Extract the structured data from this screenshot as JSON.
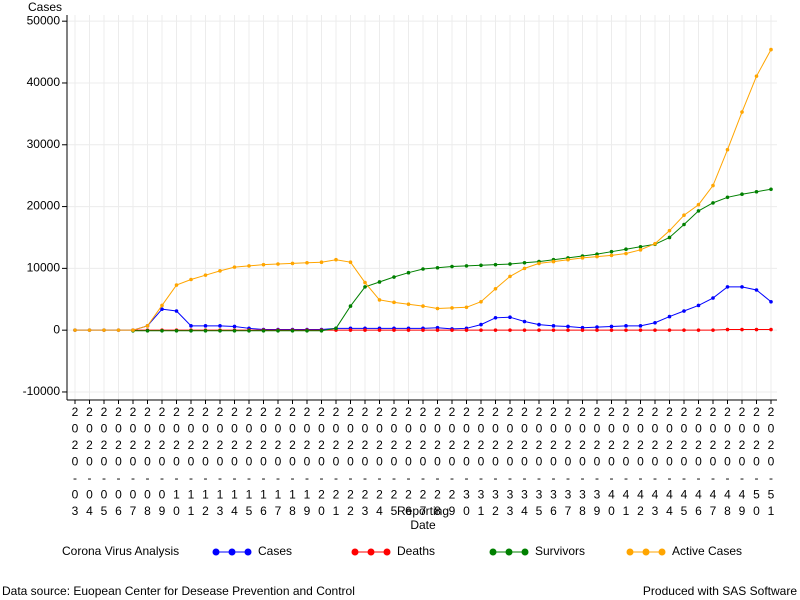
{
  "chart_data": {
    "type": "line",
    "title": "Corona Virus Analysis",
    "y_label": "Cases",
    "x_label_lines": [
      "Reporting",
      "Date"
    ],
    "footnote_left": "Data source: Euopean Center for Desease Prevention and Control",
    "footnote_right": "Produced with SAS Software",
    "categories": [
      "2020-03",
      "2020-04",
      "2020-05",
      "2020-06",
      "2020-07",
      "2020-08",
      "2020-09",
      "2020-10",
      "2020-11",
      "2020-12",
      "2020-13",
      "2020-14",
      "2020-15",
      "2020-16",
      "2020-17",
      "2020-18",
      "2020-19",
      "2020-20",
      "2020-21",
      "2020-22",
      "2020-23",
      "2020-24",
      "2020-25",
      "2020-26",
      "2020-27",
      "2020-28",
      "2020-29",
      "2020-30",
      "2020-31",
      "2020-32",
      "2020-33",
      "2020-34",
      "2020-35",
      "2020-36",
      "2020-37",
      "2020-38",
      "2020-39",
      "2020-40",
      "2020-41",
      "2020-42",
      "2020-43",
      "2020-44",
      "2020-45",
      "2020-46",
      "2020-47",
      "2020-48",
      "2020-49",
      "2020-50",
      "2020-51"
    ],
    "series": [
      {
        "name": "Cases",
        "color": "#0000ff",
        "values": [
          0,
          0,
          0,
          0,
          0,
          700,
          3400,
          3100,
          700,
          700,
          700,
          600,
          300,
          100,
          100,
          100,
          100,
          100,
          300,
          300,
          300,
          300,
          300,
          300,
          300,
          400,
          200,
          300,
          900,
          2000,
          2100,
          1400,
          900,
          700,
          600,
          400,
          500,
          600,
          700,
          700,
          1200,
          2200,
          3100,
          4000,
          5200,
          7000,
          7000,
          6500,
          4600
        ]
      },
      {
        "name": "Deaths",
        "color": "#ff0000",
        "values": [
          null,
          null,
          null,
          null,
          0,
          0,
          0,
          0,
          0,
          0,
          0,
          0,
          0,
          0,
          0,
          0,
          0,
          0,
          0,
          0,
          0,
          0,
          0,
          0,
          0,
          0,
          0,
          0,
          0,
          0,
          0,
          0,
          0,
          0,
          0,
          0,
          0,
          0,
          0,
          0,
          0,
          0,
          0,
          0,
          0,
          100,
          100,
          100,
          100
        ]
      },
      {
        "name": "Survivors",
        "color": "#008000",
        "values": [
          null,
          null,
          null,
          null,
          -100,
          -100,
          -100,
          -100,
          -100,
          -100,
          -100,
          -100,
          -100,
          -100,
          -100,
          -100,
          -100,
          -100,
          300,
          3900,
          7000,
          7800,
          8600,
          9300,
          9900,
          10100,
          10300,
          10400,
          10500,
          10600,
          10700,
          10900,
          11100,
          11400,
          11700,
          12000,
          12300,
          12700,
          13100,
          13500,
          13900,
          15000,
          17100,
          19300,
          20600,
          21500,
          22000,
          22400,
          22800
        ]
      },
      {
        "name": "Active Cases",
        "color": "#ffa500",
        "values": [
          0,
          0,
          0,
          0,
          0,
          700,
          4000,
          7300,
          8200,
          8900,
          9600,
          10200,
          10400,
          10600,
          10700,
          10800,
          10900,
          11000,
          11400,
          11000,
          7700,
          4900,
          4500,
          4200,
          3900,
          3500,
          3600,
          3700,
          4600,
          6700,
          8700,
          10000,
          10800,
          11100,
          11400,
          11700,
          11900,
          12100,
          12400,
          13000,
          14000,
          16100,
          18600,
          20300,
          23400,
          29200,
          35300,
          41100,
          45400
        ]
      }
    ],
    "ylim": [
      -11300,
      51000
    ],
    "yticks": [
      -10000,
      0,
      10000,
      20000,
      30000,
      40000,
      50000
    ],
    "grid": true
  }
}
